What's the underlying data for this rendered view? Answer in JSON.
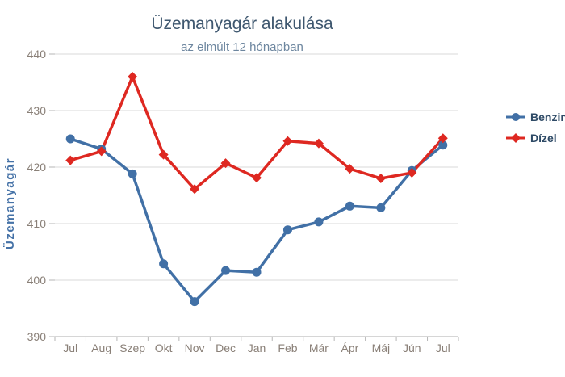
{
  "chart_data": {
    "type": "line",
    "title": "Üzemanyagár alakulása",
    "subtitle": "az elmúlt 12 hónapban",
    "ylabel": "Üzemanyagár",
    "xlabel": "",
    "categories": [
      "Jul",
      "Aug",
      "Szep",
      "Okt",
      "Nov",
      "Dec",
      "Jan",
      "Feb",
      "Már",
      "Ápr",
      "Máj",
      "Jún",
      "Jul"
    ],
    "series": [
      {
        "name": "Benzin",
        "color": "#4170A6",
        "marker": "circle",
        "values": [
          425.0,
          423.2,
          418.8,
          402.9,
          396.2,
          401.7,
          401.4,
          408.9,
          410.3,
          413.1,
          412.8,
          419.4,
          423.9
        ]
      },
      {
        "name": "Dízel",
        "color": "#DE2821",
        "marker": "diamond",
        "values": [
          421.2,
          422.8,
          436.0,
          422.2,
          416.1,
          420.7,
          418.1,
          424.6,
          424.2,
          419.7,
          418.0,
          419.0,
          425.1
        ]
      }
    ],
    "ylim": [
      390,
      440
    ],
    "ytick_step": 10,
    "grid": true,
    "legend_position": "right"
  }
}
